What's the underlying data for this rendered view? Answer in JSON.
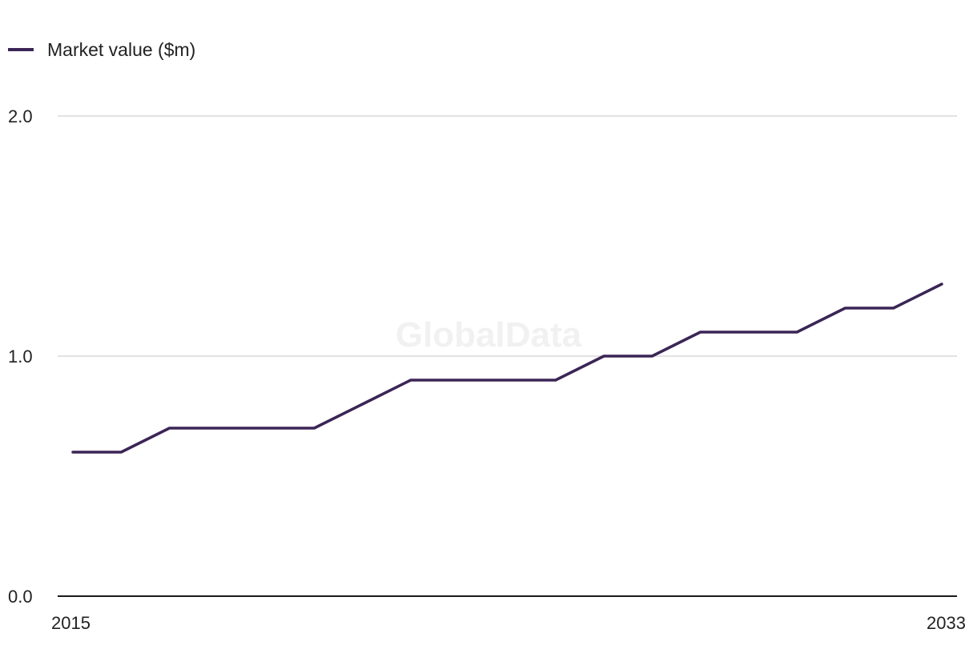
{
  "chart_data": {
    "type": "line",
    "title": "",
    "xlabel": "",
    "ylabel": "",
    "x": [
      2015,
      2016,
      2017,
      2018,
      2019,
      2020,
      2021,
      2022,
      2023,
      2024,
      2025,
      2026,
      2027,
      2028,
      2029,
      2030,
      2031,
      2032,
      2033
    ],
    "series": [
      {
        "name": "Market value ($m)",
        "color": "#3b2556",
        "values": [
          0.6,
          0.6,
          0.7,
          0.7,
          0.7,
          0.7,
          0.8,
          0.9,
          0.9,
          0.9,
          0.9,
          1.0,
          1.0,
          1.1,
          1.1,
          1.1,
          1.2,
          1.2,
          1.3
        ]
      }
    ],
    "xlim": [
      2015,
      2033
    ],
    "ylim": [
      0,
      2
    ],
    "x_ticks": [
      "2015",
      "2033"
    ],
    "y_ticks": [
      "0.0",
      "1.0",
      "2.0"
    ],
    "grid": true,
    "legend_position": "top-left",
    "watermark": "GlobalData"
  }
}
